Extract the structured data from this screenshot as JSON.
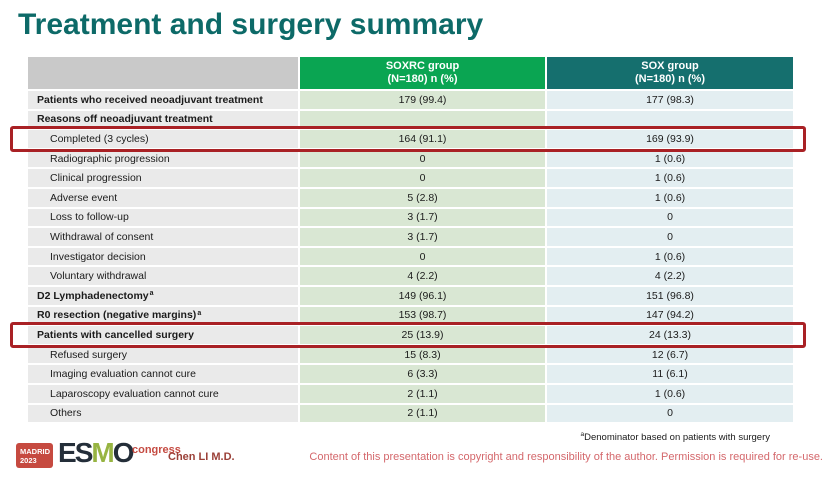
{
  "slide": {
    "title": "Treatment and surgery summary",
    "presenter": "Chen LI M.D.",
    "footnote_sup": "a",
    "footnote": "Denominator based on patients with surgery",
    "disclaimer": "Content of this presentation is copyright and responsibility of the author. Permission is required for re-use."
  },
  "logo": {
    "venue_line1": "MADRID",
    "venue_line2": "2023",
    "letter_e": "E",
    "letter_s": "S",
    "letter_m": "M",
    "letter_o": "O",
    "congress": "congress"
  },
  "colors": {
    "title_teal": "#0d6a68",
    "header_green": "#0aa552",
    "header_teal": "#156f6e",
    "header_gray": "#c9c9c9",
    "cell_green": "#d9e7d3",
    "cell_blue": "#e3eef1",
    "cell_gray": "#eaeaea",
    "highlight_red": "#a92125",
    "disclaimer_red": "#d4686c",
    "presenter_red": "#9b4038"
  },
  "table": {
    "header": {
      "col1": "",
      "col2_line1": "SOXRC group",
      "col2_line2": "(N=180)  n (%)",
      "col3_line1": "SOX group",
      "col3_line2": "(N=180)  n (%)"
    },
    "rows": [
      {
        "label": "Patients who received neoadjuvant treatment",
        "bold": true,
        "indent": false,
        "soxrc": "179 (99.4)",
        "sox": "177 (98.3)",
        "highlight": false
      },
      {
        "label": "Reasons off neoadjuvant treatment",
        "bold": true,
        "indent": false,
        "soxrc": "",
        "sox": "",
        "highlight": false
      },
      {
        "label": "Completed (3 cycles)",
        "bold": false,
        "indent": true,
        "soxrc": "164 (91.1)",
        "sox": "169 (93.9)",
        "highlight": true
      },
      {
        "label": "Radiographic progression",
        "bold": false,
        "indent": true,
        "soxrc": "0",
        "sox": "1 (0.6)",
        "highlight": false
      },
      {
        "label": "Clinical progression",
        "bold": false,
        "indent": true,
        "soxrc": "0",
        "sox": "1 (0.6)",
        "highlight": false
      },
      {
        "label": "Adverse event",
        "bold": false,
        "indent": true,
        "soxrc": "5 (2.8)",
        "sox": "1 (0.6)",
        "highlight": false
      },
      {
        "label": "Loss to follow-up",
        "bold": false,
        "indent": true,
        "soxrc": "3 (1.7)",
        "sox": "0",
        "highlight": false
      },
      {
        "label": "Withdrawal of consent",
        "bold": false,
        "indent": true,
        "soxrc": "3 (1.7)",
        "sox": "0",
        "highlight": false
      },
      {
        "label": "Investigator decision",
        "bold": false,
        "indent": true,
        "soxrc": "0",
        "sox": "1 (0.6)",
        "highlight": false
      },
      {
        "label": "Voluntary withdrawal",
        "bold": false,
        "indent": true,
        "soxrc": "4 (2.2)",
        "sox": "4 (2.2)",
        "highlight": false
      },
      {
        "label": "D2 Lymphadenectomy",
        "sup": "a",
        "bold": true,
        "indent": false,
        "soxrc": "149 (96.1)",
        "sox": "151 (96.8)",
        "highlight": false
      },
      {
        "label": "R0 resection (negative margins)",
        "sup": "a",
        "bold": true,
        "indent": false,
        "soxrc": "153 (98.7)",
        "sox": "147 (94.2)",
        "highlight": false
      },
      {
        "label": "Patients with cancelled surgery",
        "bold": true,
        "indent": false,
        "soxrc": "25 (13.9)",
        "sox": "24 (13.3)",
        "highlight": true
      },
      {
        "label": "Refused surgery",
        "bold": false,
        "indent": true,
        "soxrc": "15 (8.3)",
        "sox": "12 (6.7)",
        "highlight": false
      },
      {
        "label": "Imaging evaluation cannot cure",
        "bold": false,
        "indent": true,
        "soxrc": "6 (3.3)",
        "sox": "11 (6.1)",
        "highlight": false
      },
      {
        "label": "Laparoscopy evaluation cannot cure",
        "bold": false,
        "indent": true,
        "soxrc": "2 (1.1)",
        "sox": "1 (0.6)",
        "highlight": false
      },
      {
        "label": "Others",
        "bold": false,
        "indent": true,
        "soxrc": "2 (1.1)",
        "sox": "0",
        "highlight": false
      }
    ]
  }
}
